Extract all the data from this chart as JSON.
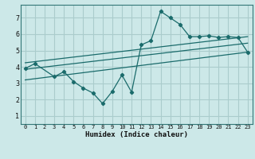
{
  "xlabel": "Humidex (Indice chaleur)",
  "bg_color": "#cce8e8",
  "grid_color": "#aacccc",
  "line_color": "#1a6b6b",
  "xlim": [
    -0.5,
    23.5
  ],
  "ylim": [
    0.5,
    7.8
  ],
  "xticks": [
    0,
    1,
    2,
    3,
    4,
    5,
    6,
    7,
    8,
    9,
    10,
    11,
    12,
    13,
    14,
    15,
    16,
    17,
    18,
    19,
    20,
    21,
    22,
    23
  ],
  "yticks": [
    1,
    2,
    3,
    4,
    5,
    6,
    7
  ],
  "scatter_x": [
    0,
    1,
    3,
    4,
    5,
    6,
    7,
    8,
    9,
    10,
    11,
    12,
    13,
    14,
    15,
    16,
    17,
    18,
    19,
    20,
    21,
    22,
    23
  ],
  "scatter_y": [
    3.9,
    4.2,
    3.4,
    3.7,
    3.1,
    2.7,
    2.4,
    1.75,
    2.5,
    3.5,
    2.45,
    5.35,
    5.6,
    7.4,
    7.0,
    6.6,
    5.85,
    5.85,
    5.9,
    5.8,
    5.85,
    5.8,
    4.9
  ],
  "line1_x": [
    0,
    23
  ],
  "line1_y": [
    3.85,
    5.45
  ],
  "line2_x": [
    0,
    23
  ],
  "line2_y": [
    4.25,
    5.85
  ],
  "line3_x": [
    0,
    23
  ],
  "line3_y": [
    3.2,
    4.9
  ]
}
